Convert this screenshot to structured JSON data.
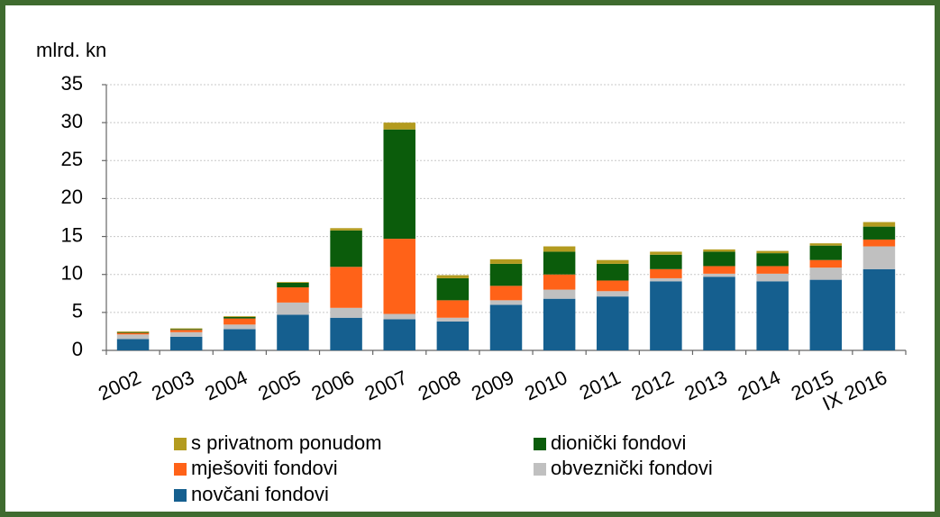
{
  "chart_data": {
    "type": "stacked-bar",
    "y_label": "mlrd. kn",
    "categories": [
      "2002",
      "2003",
      "2004",
      "2005",
      "2006",
      "2007",
      "2008",
      "2009",
      "2010",
      "2011",
      "2012",
      "2013",
      "2014",
      "2015",
      "IX 2016"
    ],
    "series": [
      {
        "name": "novčani fondovi",
        "color": "#155f8f",
        "values": [
          1.5,
          1.8,
          2.8,
          4.7,
          4.3,
          4.1,
          3.8,
          6.0,
          6.8,
          7.1,
          9.1,
          9.7,
          9.1,
          9.3,
          10.7
        ]
      },
      {
        "name": "obveznički fondovi",
        "color": "#c0c0c0",
        "values": [
          0.6,
          0.6,
          0.6,
          1.6,
          1.3,
          0.7,
          0.5,
          0.6,
          1.2,
          0.7,
          0.4,
          0.4,
          1.0,
          1.6,
          3.0
        ]
      },
      {
        "name": "mješoviti fondovi",
        "color": "#ff6218",
        "values": [
          0.2,
          0.3,
          0.8,
          2.0,
          5.4,
          9.9,
          2.3,
          1.9,
          2.0,
          1.4,
          1.2,
          1.0,
          1.0,
          1.0,
          0.9
        ]
      },
      {
        "name": "dionički fondovi",
        "color": "#0b5c0b",
        "values": [
          0.1,
          0.1,
          0.2,
          0.6,
          4.8,
          14.4,
          2.9,
          2.9,
          3.0,
          2.2,
          1.9,
          1.9,
          1.7,
          1.9,
          1.7
        ]
      },
      {
        "name": "s privatnom ponudom",
        "color": "#b39b1f",
        "values": [
          0.1,
          0.1,
          0.1,
          0.1,
          0.3,
          0.9,
          0.4,
          0.6,
          0.7,
          0.5,
          0.4,
          0.3,
          0.3,
          0.3,
          0.6
        ]
      }
    ],
    "ylim": [
      0,
      35
    ],
    "yticks": [
      0,
      5,
      10,
      15,
      20,
      25,
      30,
      35
    ],
    "grid": true
  }
}
